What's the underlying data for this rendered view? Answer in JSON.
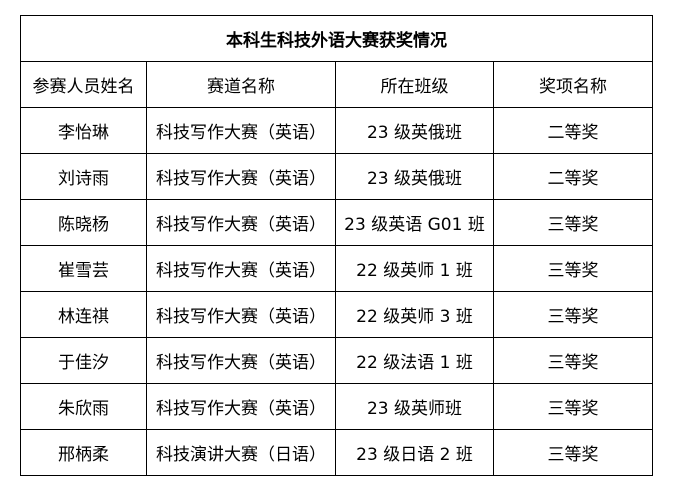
{
  "title": "本科生科技外语大赛获奖情况",
  "headers": [
    "参赛人员姓名",
    "赛道名称",
    "所在班级",
    "奖项名称"
  ],
  "rows": [
    [
      "李怡琳",
      "科技写作大赛（英语）",
      "23 级英俄班",
      "二等奖"
    ],
    [
      "刘诗雨",
      "科技写作大赛（英语）",
      "23 级英俄班",
      "二等奖"
    ],
    [
      "陈晓杨",
      "科技写作大赛（英语）",
      "23 级英语 G01 班",
      "三等奖"
    ],
    [
      "崔雪芸",
      "科技写作大赛（英语）",
      "22 级英师 1 班",
      "三等奖"
    ],
    [
      "林连祺",
      "科技写作大赛（英语）",
      "22 级英师 3 班",
      "三等奖"
    ],
    [
      "于佳汐",
      "科技写作大赛（英语）",
      "22 级法语 1 班",
      "三等奖"
    ],
    [
      "朱欣雨",
      "科技写作大赛（英语）",
      "23 级英师班",
      "三等奖"
    ],
    [
      "邢柄柔",
      "科技演讲大赛（日语）",
      "23 级日语 2 班",
      "三等奖"
    ]
  ]
}
